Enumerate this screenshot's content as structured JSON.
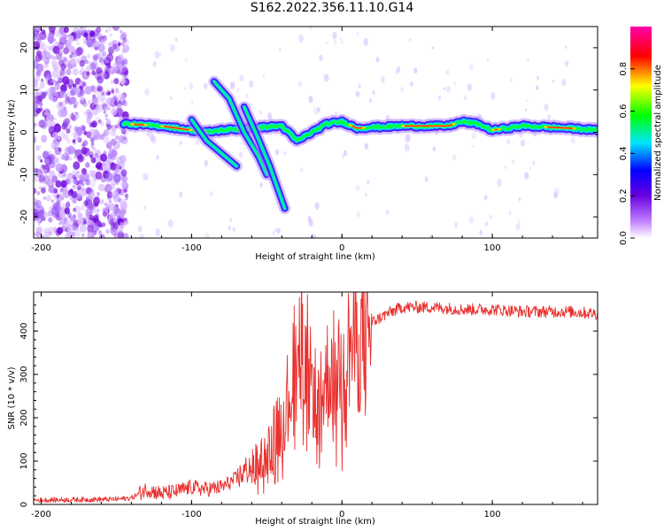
{
  "title": "S162.2022.356.11.10.G14",
  "chart_data": [
    {
      "type": "heatmap",
      "xlabel": "Height of straight line (km)",
      "ylabel": "Frequency (Hz)",
      "xlim": [
        -205,
        170
      ],
      "ylim": [
        -25,
        25
      ],
      "xticks": [
        -200,
        -100,
        0,
        100
      ],
      "yticks": [
        -20,
        -10,
        0,
        10,
        20
      ],
      "colorbar": {
        "label": "Normalized spectral amplitude",
        "range": [
          0,
          1
        ],
        "ticks": [
          "0.0",
          "0.2",
          "0.4",
          "0.6",
          "0.8"
        ],
        "colors": [
          "#ffffff",
          "#8a2be2",
          "#0000ff",
          "#00ffff",
          "#00ff00",
          "#ffff00",
          "#ff0000",
          "#ff00ff"
        ]
      },
      "main_tone": {
        "description_points": [
          [
            -145,
            2
          ],
          [
            -120,
            1.5
          ],
          [
            -100,
            0.5
          ],
          [
            -90,
            0
          ],
          [
            -80,
            0.5
          ],
          [
            -60,
            1
          ],
          [
            -40,
            1.5
          ],
          [
            -30,
            -2
          ],
          [
            -20,
            0
          ],
          [
            -10,
            2
          ],
          [
            0,
            2.5
          ],
          [
            10,
            1
          ],
          [
            40,
            1.5
          ],
          [
            70,
            1.5
          ],
          [
            80,
            2.5
          ],
          [
            90,
            2
          ],
          [
            100,
            0.5
          ],
          [
            120,
            1.5
          ],
          [
            150,
            1
          ],
          [
            170,
            0.5
          ]
        ]
      },
      "descending_branches": [
        {
          "points": [
            [
              -100,
              3
            ],
            [
              -90,
              -2
            ],
            [
              -80,
              -5
            ],
            [
              -70,
              -8
            ]
          ]
        },
        {
          "points": [
            [
              -85,
              12
            ],
            [
              -75,
              8
            ],
            [
              -65,
              0
            ],
            [
              -55,
              -6
            ],
            [
              -50,
              -10
            ]
          ]
        },
        {
          "points": [
            [
              -65,
              6
            ],
            [
              -55,
              -2
            ],
            [
              -48,
              -8
            ],
            [
              -42,
              -14
            ],
            [
              -38,
              -18
            ]
          ]
        }
      ]
    },
    {
      "type": "line",
      "xlabel": "Height of straight line (km)",
      "ylabel": "SNR (10 * v/v)",
      "xlim": [
        -205,
        170
      ],
      "ylim": [
        0,
        490
      ],
      "xticks": [
        -200,
        -100,
        0,
        100
      ],
      "yticks": [
        0,
        100,
        200,
        300,
        400
      ],
      "color": "#e8302e",
      "envelope": [
        [
          -205,
          10
        ],
        [
          -150,
          12
        ],
        [
          -140,
          15
        ],
        [
          -130,
          35
        ],
        [
          -120,
          25
        ],
        [
          -110,
          30
        ],
        [
          -100,
          40
        ],
        [
          -90,
          35
        ],
        [
          -80,
          40
        ],
        [
          -70,
          60
        ],
        [
          -60,
          90
        ],
        [
          -50,
          120
        ],
        [
          -45,
          160
        ],
        [
          -40,
          200
        ],
        [
          -35,
          260
        ],
        [
          -30,
          330
        ],
        [
          -27,
          480
        ],
        [
          -25,
          300
        ],
        [
          -20,
          280
        ],
        [
          -15,
          230
        ],
        [
          -10,
          300
        ],
        [
          -5,
          320
        ],
        [
          0,
          330
        ],
        [
          5,
          360
        ],
        [
          10,
          380
        ],
        [
          15,
          390
        ],
        [
          20,
          420
        ],
        [
          30,
          440
        ],
        [
          40,
          455
        ],
        [
          60,
          455
        ],
        [
          80,
          450
        ],
        [
          100,
          450
        ],
        [
          120,
          445
        ],
        [
          150,
          445
        ],
        [
          170,
          440
        ]
      ]
    }
  ]
}
